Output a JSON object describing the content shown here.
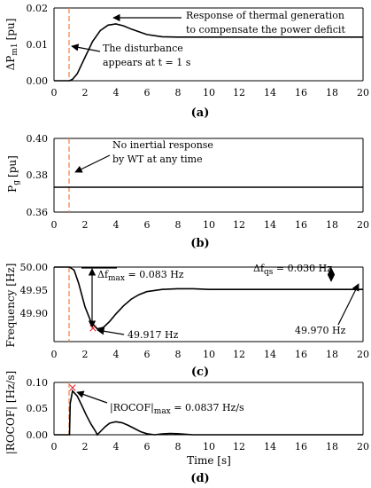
{
  "chart_data": [
    {
      "type": "line",
      "panel": "(a)",
      "ylabel_main": "ΔP",
      "ylabel_sub": "m1",
      "ylabel_unit": "[pu]",
      "xlim": [
        0,
        20
      ],
      "ylim": [
        0,
        0.02
      ],
      "yticks": [
        "0.00",
        "0.01",
        "0.02"
      ],
      "xticks": [
        "0",
        "2",
        "4",
        "6",
        "8",
        "10",
        "12",
        "14",
        "16",
        "18",
        "20"
      ],
      "disturbance_x": 1,
      "series": [
        {
          "x": [
            0,
            1,
            1.2,
            1.5,
            2,
            2.5,
            3,
            3.5,
            4,
            4.5,
            5,
            6,
            7,
            8,
            10,
            14,
            20
          ],
          "y": [
            0,
            0,
            0.0004,
            0.0019,
            0.0064,
            0.0108,
            0.0138,
            0.0153,
            0.0156,
            0.0151,
            0.0142,
            0.0127,
            0.0121,
            0.012,
            0.012,
            0.012,
            0.012
          ]
        }
      ],
      "annotations": [
        {
          "id": "thermal",
          "lines": [
            "Response of thermal generation",
            "to compensate the power deficit"
          ],
          "arrow_to": [
            3.7,
            0.0155
          ]
        },
        {
          "id": "disturbance",
          "lines": [
            "The disturbance",
            "appears at t = 1 s"
          ],
          "arrow_to": [
            1.05,
            0.009
          ]
        }
      ]
    },
    {
      "type": "line",
      "panel": "(b)",
      "ylabel_main": "P",
      "ylabel_sub": "g",
      "ylabel_unit": "[pu]",
      "xlim": [
        0,
        20
      ],
      "ylim": [
        0.36,
        0.4
      ],
      "yticks": [
        "0.36",
        "0.38",
        "0.40"
      ],
      "xticks": [
        "0",
        "2",
        "4",
        "6",
        "8",
        "10",
        "12",
        "14",
        "16",
        "18",
        "20"
      ],
      "disturbance_x": 1,
      "series": [
        {
          "x": [
            0,
            20
          ],
          "y": [
            0.3735,
            0.3735
          ]
        }
      ],
      "annotations": [
        {
          "id": "inertia",
          "lines": [
            "No inertial response",
            "by WT at any time"
          ],
          "arrow_to": [
            1.3,
            0.3745
          ]
        }
      ]
    },
    {
      "type": "line",
      "panel": "(c)",
      "ylabel_main": "Frequency [Hz]",
      "xlim": [
        0,
        20
      ],
      "ylim": [
        49.9,
        50.0
      ],
      "yticks": [
        "49.90",
        "49.95",
        "50.00"
      ],
      "xticks": [
        "0",
        "2",
        "4",
        "6",
        "8",
        "10",
        "12",
        "14",
        "16",
        "18",
        "20"
      ],
      "disturbance_x": 1,
      "series": [
        {
          "x": [
            0,
            1,
            1.3,
            1.6,
            2,
            2.4,
            2.8,
            3.2,
            3.6,
            4,
            4.5,
            5,
            5.5,
            6,
            7,
            8,
            9,
            10,
            12,
            14,
            16,
            18,
            20
          ],
          "y": [
            50.0,
            50.0,
            49.996,
            49.978,
            49.947,
            49.926,
            49.917,
            49.919,
            49.927,
            49.937,
            49.948,
            49.957,
            49.963,
            49.967,
            49.97,
            49.971,
            49.971,
            49.97,
            49.97,
            49.97,
            49.97,
            49.97,
            49.97
          ]
        }
      ],
      "markers": [
        {
          "x": 2.8,
          "y": 49.917,
          "label": "49.917 Hz"
        }
      ],
      "dfmax": {
        "main": "Δf",
        "sub": "max",
        "value": " = 0.083 Hz",
        "x": 2.5,
        "top": 50.0,
        "bottom": 49.917
      },
      "dfqs": {
        "main": "Δf",
        "sub": "qs",
        "value": " = 0.030 Hz",
        "x": 17.9,
        "top": 50.0,
        "bottom": 49.97
      },
      "annotations": [
        {
          "id": "qs",
          "lines": [
            "49.970 Hz"
          ],
          "arrow_to": [
            19.9,
            49.97
          ]
        }
      ]
    },
    {
      "type": "line",
      "panel": "(d)",
      "ylabel_main": "|ROCOF| [Hz/s]",
      "xlabel": "Time [s]",
      "xlim": [
        0,
        20
      ],
      "ylim": [
        0,
        0.1
      ],
      "yticks": [
        "0.00",
        "0.05",
        "0.10"
      ],
      "xticks": [
        "0",
        "2",
        "4",
        "6",
        "8",
        "10",
        "12",
        "14",
        "16",
        "18",
        "20"
      ],
      "disturbance_x": 1,
      "series": [
        {
          "x": [
            0,
            1,
            1.05,
            1.2,
            1.5,
            1.8,
            2.1,
            2.4,
            2.7,
            2.8,
            3.0,
            3.3,
            3.6,
            4.0,
            4.4,
            4.8,
            5.2,
            5.6,
            6.0,
            6.5,
            7.0,
            7.5,
            8.0,
            8.5,
            9.0,
            10,
            12,
            20
          ],
          "y": [
            0,
            0,
            0.06,
            0.0837,
            0.074,
            0.056,
            0.037,
            0.02,
            0.006,
            0.0,
            0.006,
            0.015,
            0.022,
            0.025,
            0.023,
            0.018,
            0.012,
            0.006,
            0.002,
            0.0,
            0.0015,
            0.0025,
            0.002,
            0.001,
            0.0,
            0.0,
            0.0,
            0.0
          ]
        }
      ],
      "markers": [
        {
          "x": 1.2,
          "y": 0.0837
        }
      ],
      "annotations": [
        {
          "id": "rocof",
          "lines": [
            "|ROCOF|"
          ],
          "sub": "max",
          "tail": " = 0.0837 Hz/s",
          "arrow_to": [
            1.25,
            0.083
          ]
        }
      ]
    }
  ],
  "colors": {
    "curve": "#000000",
    "disturbance": "#f08a4b",
    "marker": "#e8202a"
  }
}
